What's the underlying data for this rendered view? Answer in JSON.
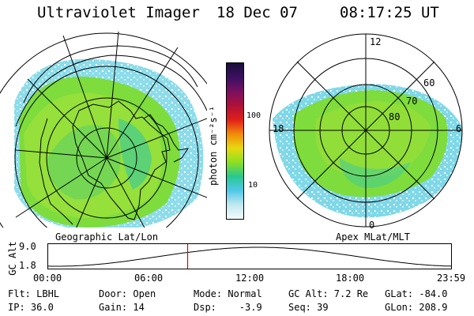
{
  "header": {
    "instrument": "Ultraviolet Imager",
    "date": "18 Dec 07",
    "time": "08:17:25 UT"
  },
  "left_panel": {
    "caption": "Geographic Lat/Lon"
  },
  "colorbar": {
    "unit_label": "photon cm⁻²s⁻¹",
    "tick_labels": [
      "100",
      "10"
    ],
    "colors": [
      "#1a0f3a",
      "#3a1060",
      "#7a1060",
      "#b0103a",
      "#e0201a",
      "#f28a0a",
      "#e8d810",
      "#8ee020",
      "#28c890",
      "#50c8e8",
      "#c0e8f0",
      "#f4fafa"
    ]
  },
  "right_panel": {
    "caption": "Apex MLat/MLT",
    "mlt_labels": [
      "12",
      "6",
      "0",
      "18"
    ],
    "mlat_labels": [
      "60",
      "70",
      "80"
    ]
  },
  "altitude_plot": {
    "ylabel": "GC Alt",
    "y_ticks": [
      "9.0",
      "1.8"
    ],
    "x_ticks": [
      "00:00",
      "06:00",
      "12:00",
      "18:00",
      "23:59"
    ],
    "marker_color": "#e00000",
    "marker_hour": 8.29
  },
  "footer": {
    "filter": "Flt: LBHL",
    "ip": "IP: 36.0",
    "door": "Door: Open",
    "gain": "Gain: 14",
    "mode": "Mode: Normal",
    "dsp": "Dsp:    -3.9",
    "gc_alt": "GC Alt: 7.2 Re",
    "seq": "Seq: 39",
    "glat": "GLat: -84.0",
    "glon": "GLon: 208.9"
  }
}
